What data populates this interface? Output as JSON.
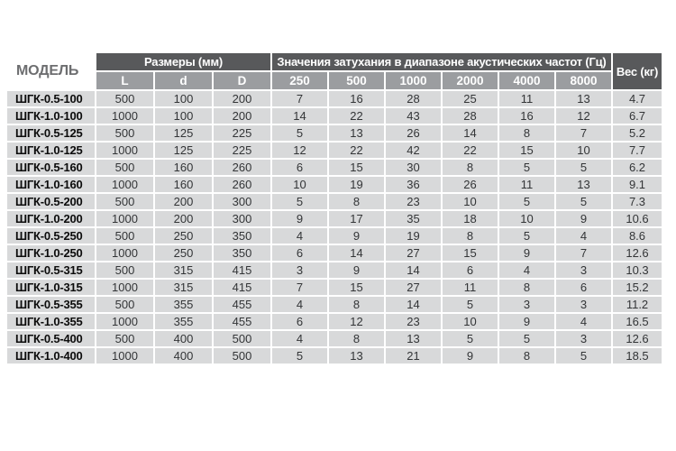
{
  "page": {
    "background": "#ffffff"
  },
  "table": {
    "title_column": "МОДЕЛЬ",
    "groups": {
      "dimensions": "Размеры (мм)",
      "attenuation": "Значения затухания в диапазоне акустических частот (Гц)",
      "weight": "Вес (кг)"
    },
    "dimension_columns": [
      "L",
      "d",
      "D"
    ],
    "frequency_columns": [
      "250",
      "500",
      "1000",
      "2000",
      "4000",
      "8000"
    ],
    "colors": {
      "header_dark": "#58595b",
      "header_medium": "#9b9da0",
      "cell_light": "#d8d9da",
      "header_text": "#ffffff",
      "model_header_text": "#6d6e70"
    },
    "rows": [
      {
        "model": "ШГК-0.5-100",
        "values": [
          "500",
          "100",
          "200",
          "7",
          "16",
          "28",
          "25",
          "11",
          "13",
          "4.7"
        ]
      },
      {
        "model": "ШГК-1.0-100",
        "values": [
          "1000",
          "100",
          "200",
          "14",
          "22",
          "43",
          "28",
          "16",
          "12",
          "6.7"
        ]
      },
      {
        "model": "ШГК-0.5-125",
        "values": [
          "500",
          "125",
          "225",
          "5",
          "13",
          "26",
          "14",
          "8",
          "7",
          "5.2"
        ]
      },
      {
        "model": "ШГК-1.0-125",
        "values": [
          "1000",
          "125",
          "225",
          "12",
          "22",
          "42",
          "22",
          "15",
          "10",
          "7.7"
        ]
      },
      {
        "model": "ШГК-0.5-160",
        "values": [
          "500",
          "160",
          "260",
          "6",
          "15",
          "30",
          "8",
          "5",
          "5",
          "6.2"
        ]
      },
      {
        "model": "ШГК-1.0-160",
        "values": [
          "1000",
          "160",
          "260",
          "10",
          "19",
          "36",
          "26",
          "11",
          "13",
          "9.1"
        ]
      },
      {
        "model": "ШГК-0.5-200",
        "values": [
          "500",
          "200",
          "300",
          "5",
          "8",
          "23",
          "10",
          "5",
          "5",
          "7.3"
        ]
      },
      {
        "model": "ШГК-1.0-200",
        "values": [
          "1000",
          "200",
          "300",
          "9",
          "17",
          "35",
          "18",
          "10",
          "9",
          "10.6"
        ]
      },
      {
        "model": "ШГК-0.5-250",
        "values": [
          "500",
          "250",
          "350",
          "4",
          "9",
          "19",
          "8",
          "5",
          "4",
          "8.6"
        ]
      },
      {
        "model": "ШГК-1.0-250",
        "values": [
          "1000",
          "250",
          "350",
          "6",
          "14",
          "27",
          "15",
          "9",
          "7",
          "12.6"
        ]
      },
      {
        "model": "ШГК-0.5-315",
        "values": [
          "500",
          "315",
          "415",
          "3",
          "9",
          "14",
          "6",
          "4",
          "3",
          "10.3"
        ]
      },
      {
        "model": "ШГК-1.0-315",
        "values": [
          "1000",
          "315",
          "415",
          "7",
          "15",
          "27",
          "11",
          "8",
          "6",
          "15.2"
        ]
      },
      {
        "model": "ШГК-0.5-355",
        "values": [
          "500",
          "355",
          "455",
          "4",
          "8",
          "14",
          "5",
          "3",
          "3",
          "11.2"
        ]
      },
      {
        "model": "ШГК-1.0-355",
        "values": [
          "1000",
          "355",
          "455",
          "6",
          "12",
          "23",
          "10",
          "9",
          "4",
          "16.5"
        ]
      },
      {
        "model": "ШГК-0.5-400",
        "values": [
          "500",
          "400",
          "500",
          "4",
          "8",
          "13",
          "5",
          "5",
          "3",
          "12.6"
        ]
      },
      {
        "model": "ШГК-1.0-400",
        "values": [
          "1000",
          "400",
          "500",
          "5",
          "13",
          "21",
          "9",
          "8",
          "5",
          "18.5"
        ]
      }
    ]
  }
}
